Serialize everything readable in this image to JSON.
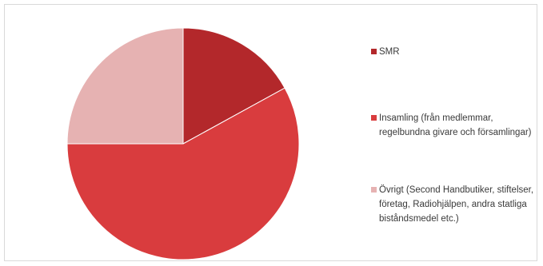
{
  "chart_data": {
    "type": "pie",
    "title": "",
    "start_angle_deg": 0,
    "direction": "clockwise",
    "slices": [
      {
        "label": "SMR",
        "value": 17,
        "color": "#b3282b"
      },
      {
        "label": "Insamling (från medlemmar, regelbundna givare och församlingar)",
        "value": 58,
        "color": "#d93c3e"
      },
      {
        "label": "Övrigt (Second Handbutiker, stiftelser, företag, Radiohjälpen, andra statliga biståndsmedel etc.)",
        "value": 25,
        "color": "#e6b2b2"
      }
    ],
    "legend_position": "right"
  }
}
